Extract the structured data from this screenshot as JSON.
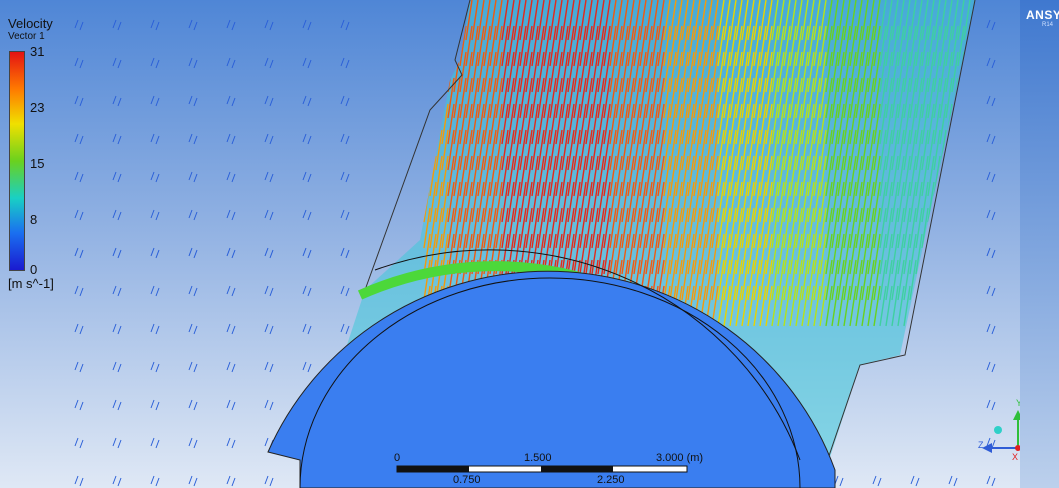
{
  "legend": {
    "title": "Velocity",
    "subtitle": "Vector 1",
    "ticks": [
      "31",
      "23",
      "15",
      "8",
      "0"
    ],
    "unit": "[m s^-1]"
  },
  "scale_bar": {
    "top_labels": [
      "0",
      "1.500",
      "3.000 (m)"
    ],
    "bottom_labels": [
      "0.750",
      "2.250"
    ]
  },
  "logo": {
    "text": "ANSYS",
    "sub": "R14"
  },
  "colors": {
    "cylinder": "#3a7ef0",
    "background_top": "#4f86d6",
    "background_bottom": "#dfe8f5"
  },
  "triad": {
    "axes": [
      "Y",
      "Z",
      "X"
    ]
  }
}
